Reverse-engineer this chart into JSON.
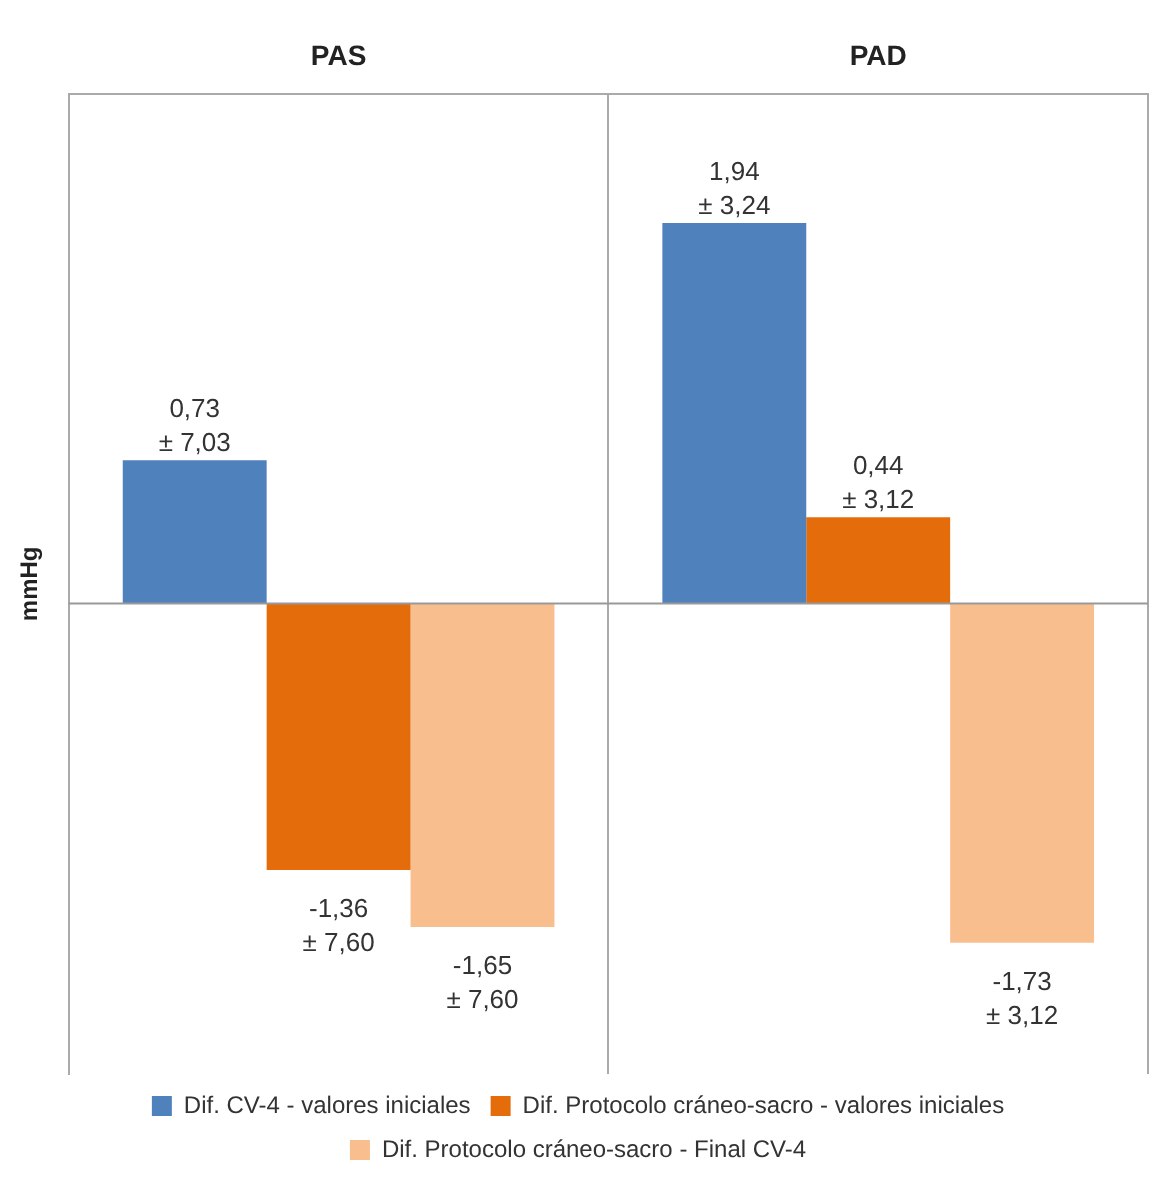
{
  "chart_data": {
    "type": "bar",
    "categories": [
      "PAS",
      "PAD"
    ],
    "ylabel": "mmHg",
    "ylim": [
      -2.4,
      2.6
    ],
    "tick_labels": "x",
    "grid": "x",
    "legend": "bottom",
    "ref_lines": [
      {
        "axis": "y",
        "value": 0
      }
    ],
    "series": [
      {
        "name": "Dif. CV-4 - valores iniciales",
        "color": "#4f81bd",
        "values": [
          0.73,
          1.94
        ],
        "value_labels": [
          "0,73\n± 7,03",
          "1,94\n± 3,24"
        ]
      },
      {
        "name": "Dif. Protocolo cráneo-sacro - valores iniciales",
        "color": "#e46c0a",
        "values": [
          -1.36,
          0.44
        ],
        "value_labels": [
          "-1,36\n± 7,60",
          "0,44\n± 3,12"
        ]
      },
      {
        "name": "Dif. Protocolo cráneo-sacro - Final CV-4",
        "color": "#f9be8e",
        "values": [
          -1.65,
          -1.73
        ],
        "value_labels": [
          "-1,65\n± 7,60",
          "-1,73\n± 3,12"
        ]
      }
    ]
  }
}
